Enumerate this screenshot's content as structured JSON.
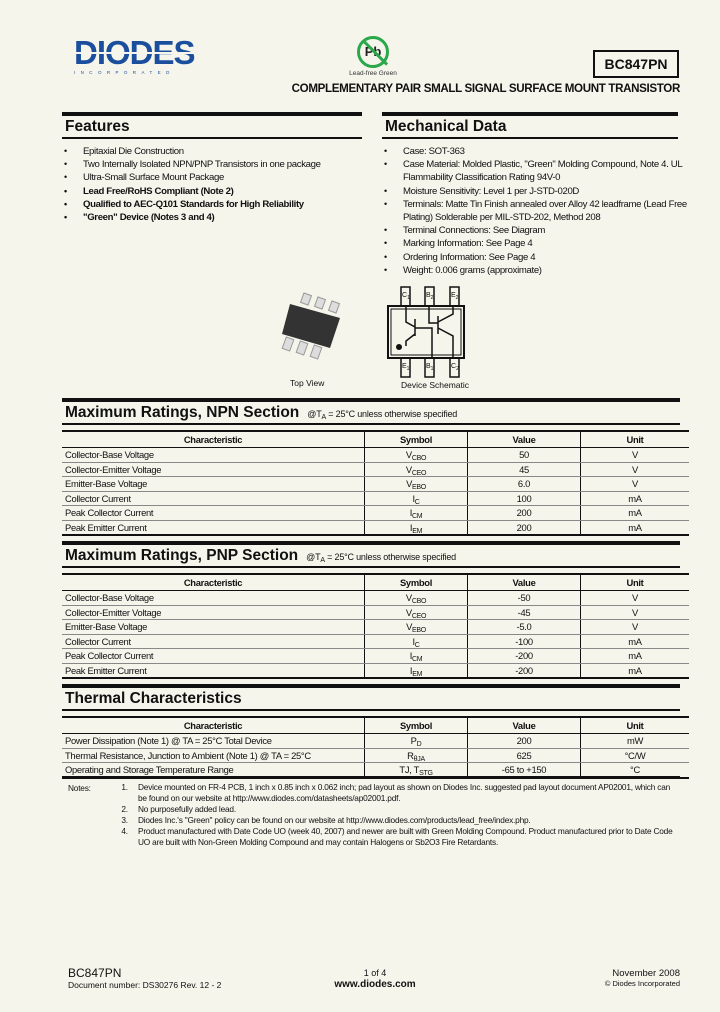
{
  "header": {
    "logo_text": "DIODES",
    "logo_sub": "INCORPORATED",
    "pb_badge": "Pb",
    "pb_label": "Lead-free Green",
    "part_number": "BC847PN",
    "subtitle": "COMPLEMENTARY PAIR SMALL SIGNAL SURFACE MOUNT TRANSISTOR",
    "brand_color": "#1b4f9e",
    "green_color": "#2aa84a"
  },
  "features": {
    "title": "Features",
    "items": [
      {
        "text": "Epitaxial Die Construction",
        "bold": false
      },
      {
        "text": "Two Internally Isolated NPN/PNP Transistors in one package",
        "bold": false
      },
      {
        "text": "Ultra-Small Surface Mount Package",
        "bold": false
      },
      {
        "text": "Lead Free/RoHS Compliant (Note 2)",
        "bold": true
      },
      {
        "text": "Qualified to AEC-Q101 Standards for High Reliability",
        "bold": true
      },
      {
        "text": "\"Green\" Device (Notes 3 and 4)",
        "bold": true
      }
    ],
    "image_caption": "Top View"
  },
  "mechanical": {
    "title": "Mechanical Data",
    "items": [
      "Case: SOT-363",
      "Case Material: Molded Plastic, \"Green\" Molding Compound, Note 4. UL Flammability Classification Rating 94V-0",
      "Moisture Sensitivity: Level 1 per J-STD-020D",
      "Terminals: Matte Tin Finish annealed over Alloy 42 leadframe (Lead Free Plating) Solderable per MIL-STD-202, Method 208",
      "Terminal Connections: See Diagram",
      "Marking Information: See Page 4",
      "Ordering Information: See Page 4",
      "Weight: 0.006 grams (approximate)"
    ],
    "schematic_caption": "Device Schematic",
    "pins_top": [
      {
        "l": "C",
        "s": "1"
      },
      {
        "l": "B",
        "s": "2"
      },
      {
        "l": "E",
        "s": "2"
      }
    ],
    "pins_bottom": [
      {
        "l": "E",
        "s": "1"
      },
      {
        "l": "B",
        "s": "1"
      },
      {
        "l": "C",
        "s": "2"
      }
    ]
  },
  "tables": [
    {
      "title": "Maximum Ratings, NPN Section",
      "cond": {
        "pre": "@T",
        "sub": "A",
        "post": " = 25°C unless otherwise specified"
      },
      "headers": [
        "Characteristic",
        "Symbol",
        "Value",
        "Unit"
      ],
      "rows": [
        {
          "char": "Collector-Base Voltage",
          "sym": "V",
          "sub": "CBO",
          "value": "50",
          "unit": "V"
        },
        {
          "char": "Collector-Emitter Voltage",
          "sym": "V",
          "sub": "CEO",
          "value": "45",
          "unit": "V"
        },
        {
          "char": "Emitter-Base Voltage",
          "sym": "V",
          "sub": "EBO",
          "value": "6.0",
          "unit": "V"
        },
        {
          "char": "Collector Current",
          "sym": "I",
          "sub": "C",
          "value": "100",
          "unit": "mA"
        },
        {
          "char": "Peak Collector Current",
          "sym": "I",
          "sub": "CM",
          "value": "200",
          "unit": "mA"
        },
        {
          "char": "Peak Emitter Current",
          "sym": "I",
          "sub": "EM",
          "value": "200",
          "unit": "mA"
        }
      ]
    },
    {
      "title": "Maximum Ratings, PNP Section",
      "cond": {
        "pre": "@T",
        "sub": "A",
        "post": " = 25°C unless otherwise specified"
      },
      "headers": [
        "Characteristic",
        "Symbol",
        "Value",
        "Unit"
      ],
      "rows": [
        {
          "char": "Collector-Base Voltage",
          "sym": "V",
          "sub": "CBO",
          "value": "-50",
          "unit": "V"
        },
        {
          "char": "Collector-Emitter Voltage",
          "sym": "V",
          "sub": "CEO",
          "value": "-45",
          "unit": "V"
        },
        {
          "char": "Emitter-Base Voltage",
          "sym": "V",
          "sub": "EBO",
          "value": "-5.0",
          "unit": "V"
        },
        {
          "char": "Collector Current",
          "sym": "I",
          "sub": "C",
          "value": "-100",
          "unit": "mA"
        },
        {
          "char": "Peak Collector Current",
          "sym": "I",
          "sub": "CM",
          "value": "-200",
          "unit": "mA"
        },
        {
          "char": "Peak Emitter Current",
          "sym": "I",
          "sub": "EM",
          "value": "-200",
          "unit": "mA"
        }
      ]
    },
    {
      "title": "Thermal Characteristics",
      "headers": [
        "Characteristic",
        "Symbol",
        "Value",
        "Unit"
      ],
      "rows": [
        {
          "char": "Power Dissipation (Note 1) @ TA = 25°C Total Device",
          "sym": "P",
          "sub": "D",
          "value": "200",
          "unit": "mW"
        },
        {
          "char": "Thermal Resistance, Junction to Ambient (Note 1) @ TA = 25°C",
          "sym": "R",
          "sub": "θJA",
          "value": "625",
          "unit": "°C/W"
        },
        {
          "char": "Operating and Storage Temperature Range",
          "sym": "TJ, T",
          "sub": "STG",
          "value": "-65 to +150",
          "unit": "°C"
        }
      ]
    }
  ],
  "notes": {
    "label": "Notes:",
    "items": [
      "Device mounted on FR-4 PCB, 1 inch x 0.85 inch x 0.062 inch; pad layout as shown on Diodes Inc. suggested pad layout document AP02001, which can be found on our website at http://www.diodes.com/datasheets/ap02001.pdf.",
      "No purposefully added lead.",
      "Diodes Inc.'s \"Green\" policy can be found on our website at http://www.diodes.com/products/lead_free/index.php.",
      "Product manufactured with Date Code UO (week 40, 2007) and newer are built with Green Molding Compound. Product manufactured prior to Date Code UO are built with Non-Green Molding Compound and may contain Halogens or Sb2O3 Fire Retardants."
    ]
  },
  "footer": {
    "part": "BC847PN",
    "doc_number": "Document number: DS30276 Rev. 12 - 2",
    "page": "1 of 4",
    "website": "www.diodes.com",
    "date": "November 2008",
    "copyright": "© Diodes Incorporated"
  }
}
